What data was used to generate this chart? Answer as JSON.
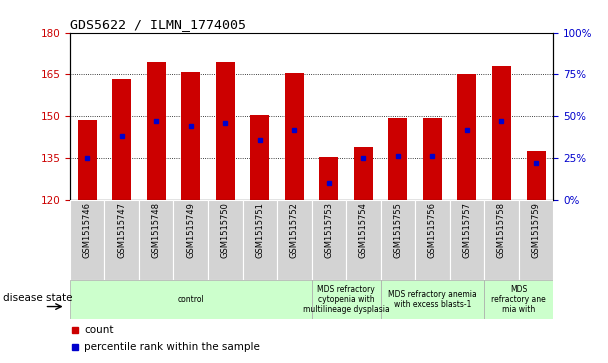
{
  "title": "GDS5622 / ILMN_1774005",
  "samples": [
    "GSM1515746",
    "GSM1515747",
    "GSM1515748",
    "GSM1515749",
    "GSM1515750",
    "GSM1515751",
    "GSM1515752",
    "GSM1515753",
    "GSM1515754",
    "GSM1515755",
    "GSM1515756",
    "GSM1515757",
    "GSM1515758",
    "GSM1515759"
  ],
  "counts": [
    148.5,
    163.5,
    169.5,
    166.0,
    169.5,
    150.5,
    165.5,
    135.5,
    139.0,
    149.5,
    149.5,
    165.0,
    168.0,
    137.5
  ],
  "percentile_ranks": [
    25,
    38,
    47,
    44,
    46,
    36,
    42,
    10,
    25,
    26,
    26,
    42,
    47,
    22
  ],
  "ylim_left": [
    120,
    180
  ],
  "ylim_right": [
    0,
    100
  ],
  "yticks_left": [
    120,
    135,
    150,
    165,
    180
  ],
  "yticks_right": [
    0,
    25,
    50,
    75,
    100
  ],
  "bar_color": "#cc0000",
  "dot_color": "#0000cc",
  "bar_bottom": 120,
  "disease_groups": [
    {
      "label": "control",
      "start": 0,
      "end": 7
    },
    {
      "label": "MDS refractory\ncytopenia with\nmultilineage dysplasia",
      "start": 7,
      "end": 9
    },
    {
      "label": "MDS refractory anemia\nwith excess blasts-1",
      "start": 9,
      "end": 12
    },
    {
      "label": "MDS\nrefractory ane\nmia with",
      "start": 12,
      "end": 14
    }
  ],
  "background_color": "#ffffff",
  "tick_color_left": "#cc0000",
  "tick_color_right": "#0000cc",
  "bar_width": 0.55,
  "sample_box_color": "#d3d3d3",
  "disease_box_color": "#ccffcc"
}
